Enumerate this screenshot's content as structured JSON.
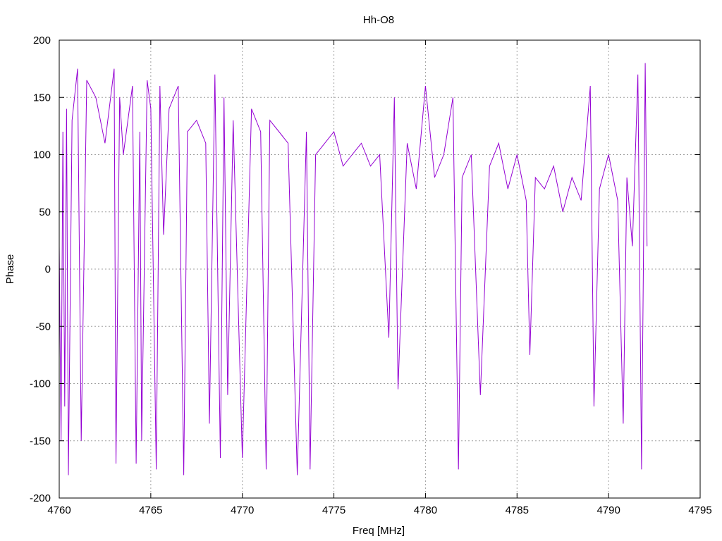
{
  "chart_data": {
    "type": "line",
    "title": "Hh-O8",
    "xlabel": "Freq [MHz]",
    "ylabel": "Phase",
    "xlim": [
      4760,
      4795
    ],
    "ylim": [
      -200,
      200
    ],
    "xticks": [
      "4760",
      "4765",
      "4770",
      "4775",
      "4780",
      "4785",
      "4790",
      "4795"
    ],
    "yticks": [
      "-200",
      "-150",
      "-100",
      "-50",
      "0",
      "50",
      "100",
      "150",
      "200"
    ],
    "grid": true,
    "legend": "none",
    "series": [
      {
        "color": "#9400d3",
        "description_points_note": "",
        "x": [
          4760.0,
          4760.1,
          4760.2,
          4760.3,
          4760.4,
          4760.5,
          4760.7,
          4761.0,
          4761.2,
          4761.5,
          4762.0,
          4762.5,
          4763.0,
          4763.1,
          4763.3,
          4763.5,
          4764.0,
          4764.2,
          4764.4,
          4764.5,
          4764.8,
          4765.0,
          4765.3,
          4765.5,
          4765.7,
          4766.0,
          4766.5,
          4766.8,
          4767.0,
          4767.5,
          4768.0,
          4768.2,
          4768.5,
          4768.8,
          4769.0,
          4769.2,
          4769.5,
          4770.0,
          4770.5,
          4771.0,
          4771.3,
          4771.5,
          4772.0,
          4772.5,
          4773.0,
          4773.5,
          4773.7,
          4774.0,
          4774.5,
          4775.0,
          4775.5,
          4776.0,
          4776.5,
          4777.0,
          4777.5,
          4778.0,
          4778.3,
          4778.5,
          4779.0,
          4779.5,
          4780.0,
          4780.5,
          4781.0,
          4781.5,
          4781.8,
          4782.0,
          4782.5,
          4783.0,
          4783.5,
          4784.0,
          4784.5,
          4785.0,
          4785.5,
          4785.7,
          4786.0,
          4786.5,
          4787.0,
          4787.5,
          4788.0,
          4788.5,
          4789.0,
          4789.2,
          4789.5,
          4790.0,
          4790.5,
          4790.8,
          4791.0,
          4791.3,
          4791.6,
          4791.8,
          4792.0,
          4792.1
        ],
        "y": [
          20,
          -150,
          120,
          -120,
          140,
          -180,
          130,
          175,
          -150,
          165,
          150,
          110,
          175,
          -170,
          150,
          100,
          160,
          -170,
          120,
          -150,
          165,
          140,
          -175,
          160,
          30,
          140,
          160,
          -180,
          120,
          130,
          110,
          -135,
          170,
          -165,
          150,
          -110,
          130,
          -165,
          140,
          120,
          -175,
          130,
          120,
          110,
          -180,
          120,
          -175,
          100,
          110,
          120,
          90,
          100,
          110,
          90,
          100,
          -60,
          150,
          -105,
          110,
          70,
          160,
          80,
          100,
          150,
          -175,
          80,
          100,
          -110,
          90,
          110,
          70,
          100,
          60,
          -75,
          80,
          70,
          90,
          50,
          80,
          60,
          160,
          -120,
          70,
          100,
          60,
          -135,
          80,
          20,
          170,
          -175,
          180,
          20
        ]
      }
    ]
  }
}
